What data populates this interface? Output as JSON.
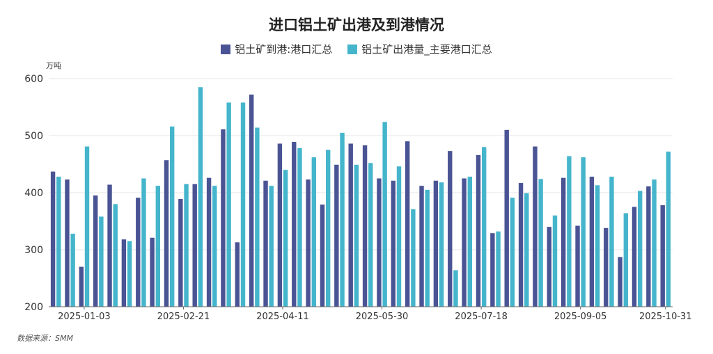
{
  "chart_data": {
    "type": "bar",
    "title": "进口铝土矿出港及到港情况",
    "unit_label": "万吨",
    "source": "数据来源：SMM",
    "ylim": [
      200,
      600
    ],
    "yticks": [
      200,
      300,
      400,
      500,
      600
    ],
    "grid": true,
    "legend_position": "top-center",
    "x_tick_labels": [
      {
        "index": 2,
        "label": "2025-01-03"
      },
      {
        "index": 9,
        "label": "2025-02-21"
      },
      {
        "index": 16,
        "label": "2025-04-11"
      },
      {
        "index": 23,
        "label": "2025-05-30"
      },
      {
        "index": 30,
        "label": "2025-07-18"
      },
      {
        "index": 37,
        "label": "2025-09-05"
      },
      {
        "index": 43,
        "label": "2025-10-31"
      }
    ],
    "series": [
      {
        "name": "铝土矿到港:港口汇总",
        "color": "#4a5494",
        "values": [
          437,
          423,
          270,
          395,
          414,
          318,
          391,
          321,
          457,
          389,
          415,
          426,
          511,
          313,
          572,
          421,
          486,
          489,
          423,
          379,
          449,
          486,
          483,
          425,
          421,
          490,
          412,
          421,
          473,
          425,
          466,
          329,
          510,
          417,
          481,
          340,
          426,
          342,
          428,
          338,
          287,
          375,
          411,
          378
        ]
      },
      {
        "name": "铝土矿出港量_主要港口汇总",
        "color": "#45b5cc",
        "values": [
          428,
          328,
          481,
          358,
          380,
          315,
          425,
          412,
          516,
          415,
          585,
          412,
          558,
          558,
          514,
          412,
          440,
          478,
          462,
          475,
          505,
          449,
          452,
          524,
          446,
          371,
          405,
          418,
          264,
          428,
          480,
          332,
          391,
          399,
          424,
          360,
          464,
          462,
          413,
          428,
          364,
          403,
          423,
          472
        ]
      }
    ]
  }
}
